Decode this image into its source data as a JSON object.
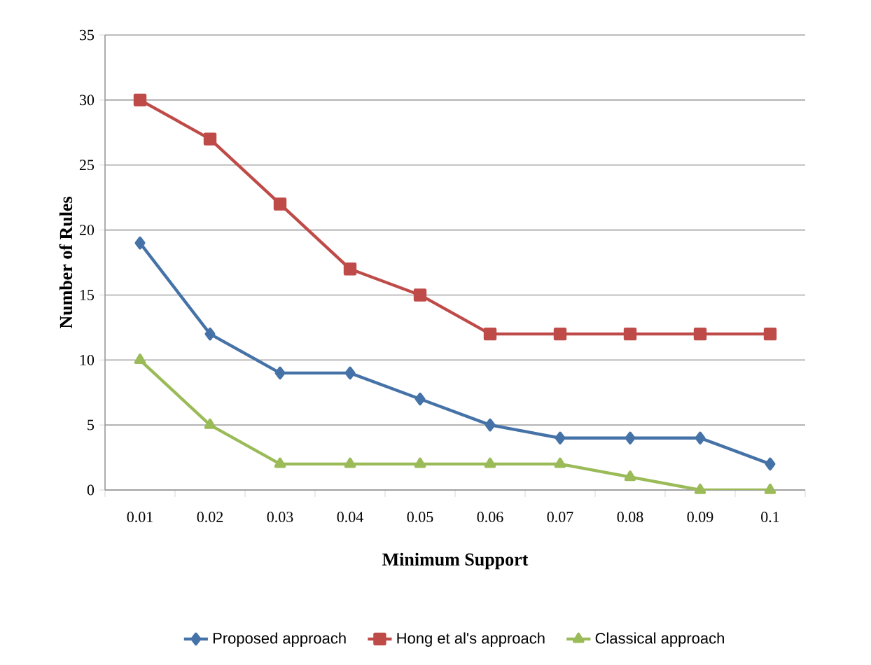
{
  "chart_data": {
    "type": "line",
    "xlabel": "Minimum Support",
    "ylabel": "Number of  Rules",
    "categories": [
      "0.01",
      "0.02",
      "0.03",
      "0.04",
      "0.05",
      "0.06",
      "0.07",
      "0.08",
      "0.09",
      "0.1"
    ],
    "series": [
      {
        "name": "Proposed approach",
        "color": "#4572a7",
        "marker": "diamond",
        "values": [
          19,
          12,
          9,
          9,
          7,
          5,
          4,
          4,
          4,
          2
        ]
      },
      {
        "name": "Hong et al's approach",
        "color": "#be4b48",
        "marker": "square",
        "values": [
          30,
          27,
          22,
          17,
          15,
          12,
          12,
          12,
          12,
          12
        ]
      },
      {
        "name": "Classical approach",
        "color": "#9bbb59",
        "marker": "triangle",
        "values": [
          10,
          5,
          2,
          2,
          2,
          2,
          2,
          1,
          0,
          0
        ]
      }
    ],
    "ylim": [
      0,
      35
    ],
    "yticks": [
      0,
      5,
      10,
      15,
      20,
      25,
      30,
      35
    ],
    "grid": "y",
    "legend": "bottom",
    "line_style": "solid"
  }
}
